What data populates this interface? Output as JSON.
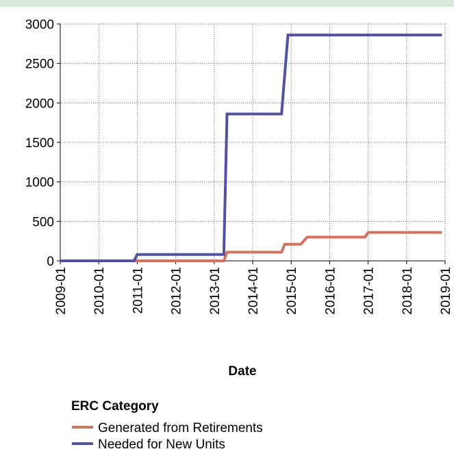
{
  "chart_data": {
    "type": "line",
    "x_label": "Date",
    "legend_title": "ERC Category",
    "xlim": [
      "2009-01",
      "2019-01"
    ],
    "xticks": [
      "2009-01",
      "2010-01",
      "2011-01",
      "2012-01",
      "2013-01",
      "2014-01",
      "2015-01",
      "2016-01",
      "2017-01",
      "2018-01",
      "2019-01"
    ],
    "ylim": [
      0,
      3000
    ],
    "yticks": [
      0,
      500,
      1000,
      1500,
      2000,
      2500,
      3000
    ],
    "grid": true,
    "series": [
      {
        "name": "Generated from Retirements",
        "color": "#d0735f",
        "x": [
          "2009-01",
          "2013-04",
          "2013-05",
          "2014-10",
          "2014-11",
          "2015-04",
          "2015-06",
          "2016-12",
          "2017-01",
          "2018-12"
        ],
        "values": [
          0,
          0,
          110,
          110,
          210,
          210,
          300,
          300,
          360,
          360
        ]
      },
      {
        "name": "Needed for New Units",
        "color": "#5252a0",
        "x": [
          "2009-01",
          "2010-12",
          "2011-01",
          "2013-04",
          "2013-05",
          "2014-10",
          "2014-12",
          "2018-12"
        ],
        "values": [
          0,
          0,
          80,
          80,
          1860,
          1860,
          2860,
          2860
        ]
      }
    ]
  }
}
